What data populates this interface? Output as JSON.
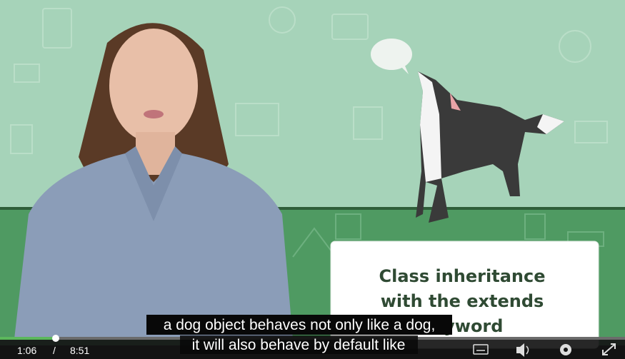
{
  "video": {
    "card": {
      "lines": [
        "Class inheritance",
        "with the extends",
        "keyword"
      ]
    },
    "captions": [
      "a dog object behaves not only like a dog,",
      "it will also behave by default like"
    ],
    "controls": {
      "current_time": "1:06",
      "separator": "/",
      "duration": "8:51"
    }
  }
}
